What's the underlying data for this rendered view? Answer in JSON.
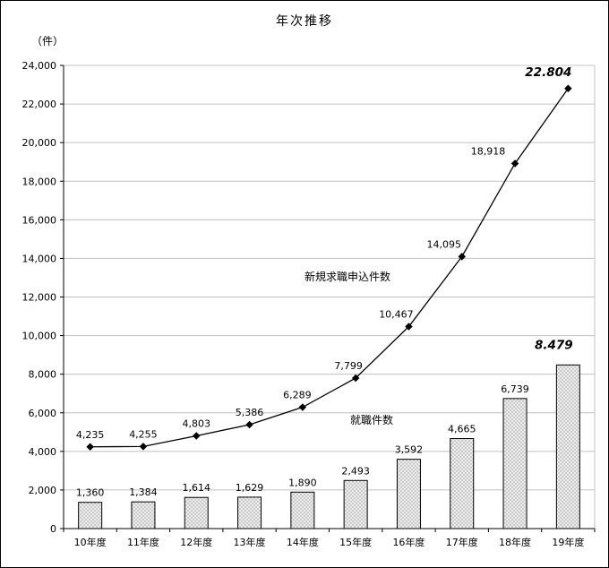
{
  "chart_data": {
    "type": "line+bar",
    "title": "年次推移",
    "unit_label": "（件）",
    "categories": [
      "10年度",
      "11年度",
      "12年度",
      "13年度",
      "14年度",
      "15年度",
      "16年度",
      "17年度",
      "18年度",
      "19年度"
    ],
    "series": [
      {
        "name": "新規求職申込件数",
        "type": "line",
        "values": [
          4235,
          4255,
          4803,
          5386,
          6289,
          7799,
          10467,
          14095,
          18918,
          22804
        ],
        "labels": [
          "4,235",
          "4,255",
          "4,803",
          "5,386",
          "6,289",
          "7,799",
          "10,467",
          "14,095",
          "18,918",
          "22.804"
        ]
      },
      {
        "name": "就職件数",
        "type": "bar",
        "values": [
          1360,
          1384,
          1614,
          1629,
          1890,
          2493,
          3592,
          4665,
          6739,
          8479
        ],
        "labels": [
          "1,360",
          "1,384",
          "1,614",
          "1,629",
          "1,890",
          "2,493",
          "3,592",
          "4,665",
          "6,739",
          "8.479"
        ]
      }
    ],
    "ylim": [
      0,
      24000
    ],
    "ytick_step": 2000,
    "ytick_labels": [
      "0",
      "2,000",
      "4,000",
      "6,000",
      "8,000",
      "10,000",
      "12,000",
      "14,000",
      "16,000",
      "18,000",
      "20,000",
      "22,000",
      "24,000"
    ],
    "grid": "horizontal",
    "legend": "none",
    "colors": {
      "line": "#000000",
      "bar_stroke": "#000000",
      "bar_fill_base": "#ececec",
      "bar_fill_dot": "#999999",
      "gridline": "#c0c0c0"
    }
  }
}
